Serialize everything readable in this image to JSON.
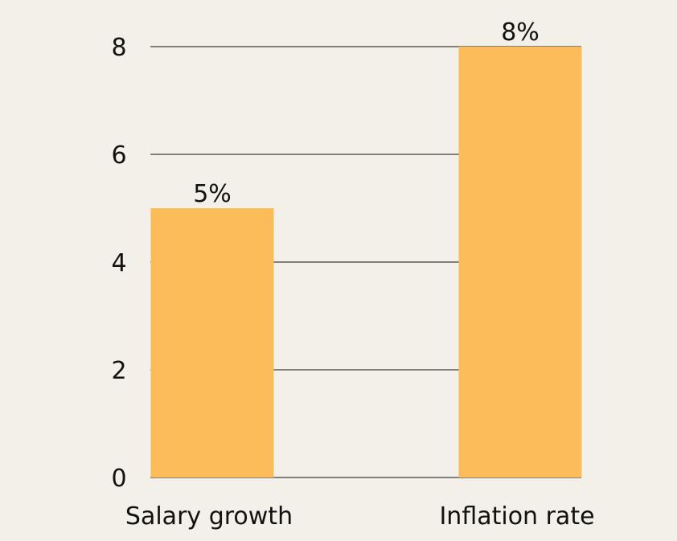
{
  "chart_data": {
    "type": "bar",
    "categories": [
      "Salary growth",
      "Inflation rate"
    ],
    "values": [
      5,
      8
    ],
    "data_labels": [
      "5%",
      "8%"
    ],
    "ylim": [
      0,
      8
    ],
    "yticks": [
      0,
      2,
      4,
      6,
      8
    ],
    "ytick_labels": [
      "0",
      "2",
      "4",
      "6",
      "8"
    ],
    "grid": true,
    "bar_color": "#fcbc5a",
    "background_color": "#f3f0e9",
    "grid_color": "#111111"
  }
}
